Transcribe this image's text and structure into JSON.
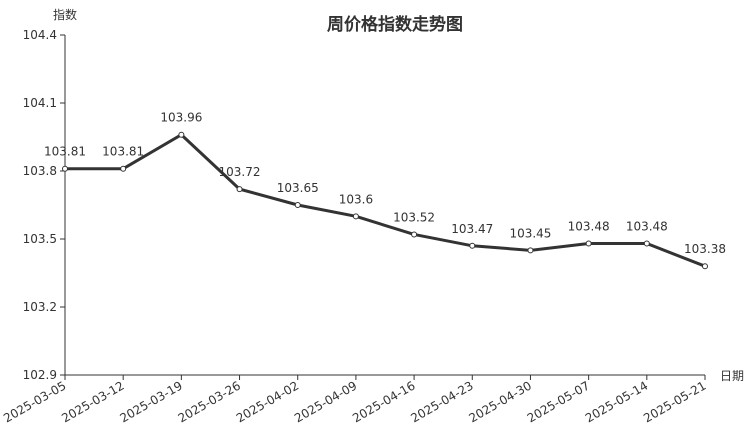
{
  "chart_data": {
    "type": "line",
    "title": "周价格指数走势图",
    "xlabel": "日期",
    "ylabel": "指数",
    "categories": [
      "2025-03-05",
      "2025-03-12",
      "2025-03-19",
      "2025-03-26",
      "2025-04-02",
      "2025-04-09",
      "2025-04-16",
      "2025-04-23",
      "2025-04-30",
      "2025-05-07",
      "2025-05-14",
      "2025-05-21"
    ],
    "values": [
      103.81,
      103.81,
      103.96,
      103.72,
      103.65,
      103.6,
      103.52,
      103.47,
      103.45,
      103.48,
      103.48,
      103.38
    ],
    "data_labels": [
      "103.81",
      "103.81",
      "103.96",
      "103.72",
      "103.65",
      "103.6",
      "103.52",
      "103.47",
      "103.45",
      "103.48",
      "103.48",
      "103.38"
    ],
    "ylim": [
      102.9,
      104.4
    ],
    "yticks": [
      "102.9",
      "103.2",
      "103.5",
      "103.8",
      "104.1",
      "104.4"
    ],
    "grid": false,
    "line_color": "#333333"
  }
}
